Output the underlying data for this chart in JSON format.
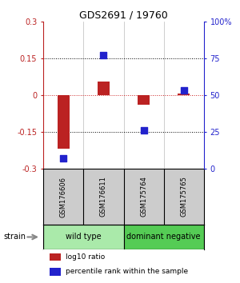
{
  "title": "GDS2691 / 19760",
  "samples": [
    "GSM176606",
    "GSM176611",
    "GSM175764",
    "GSM175765"
  ],
  "log10_ratio": [
    -0.22,
    0.055,
    -0.04,
    0.005
  ],
  "percentile_rank": [
    7,
    77,
    26,
    53
  ],
  "groups": [
    {
      "label": "wild type",
      "samples": [
        0,
        1
      ],
      "color": "#aaeaaa"
    },
    {
      "label": "dominant negative",
      "samples": [
        2,
        3
      ],
      "color": "#55cc55"
    }
  ],
  "ylim_left": [
    -0.3,
    0.3
  ],
  "ylim_right": [
    0,
    100
  ],
  "yticks_left": [
    -0.3,
    -0.15,
    0,
    0.15,
    0.3
  ],
  "yticks_right": [
    0,
    25,
    50,
    75,
    100
  ],
  "bar_color": "#bb2222",
  "dot_color": "#2222cc",
  "hline_color": "#cc2222",
  "dotted_line_color": "#000000",
  "background_color": "#ffffff",
  "label_log10": "log10 ratio",
  "label_pct": "percentile rank within the sample",
  "strain_label": "strain",
  "sample_box_color": "#cccccc",
  "title_fontsize": 9,
  "tick_fontsize": 7,
  "sample_fontsize": 6,
  "group_fontsize": 7,
  "legend_fontsize": 6.5
}
